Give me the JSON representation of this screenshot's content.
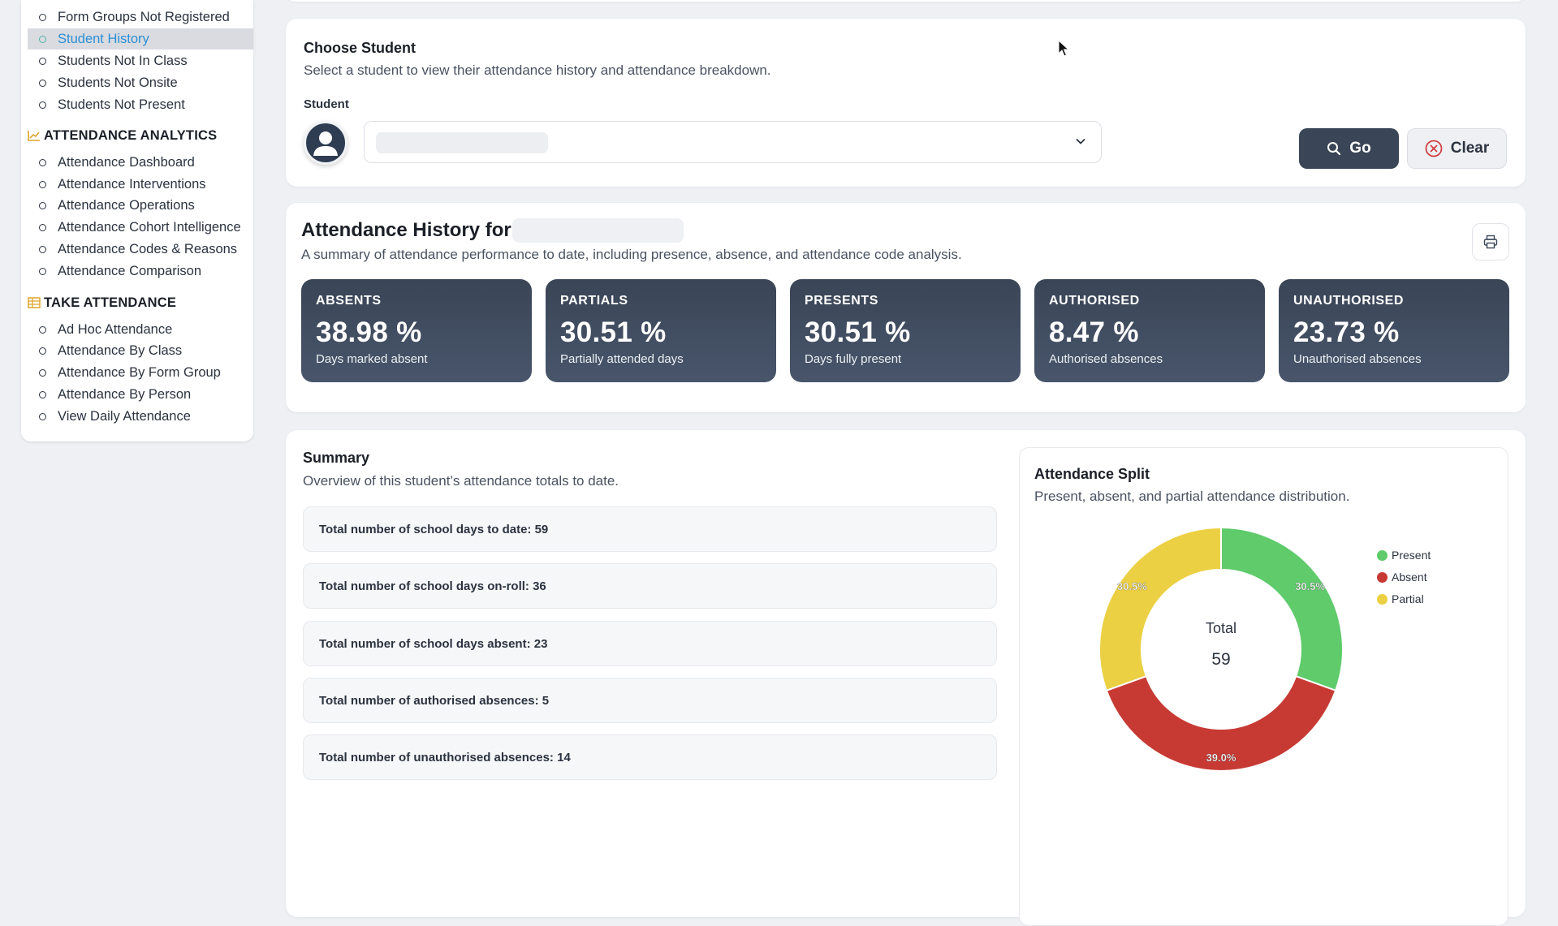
{
  "sidebar": {
    "items_top": [
      {
        "label": "Form Groups Not Registered",
        "active": false
      },
      {
        "label": "Student History",
        "active": true
      },
      {
        "label": "Students Not In Class",
        "active": false
      },
      {
        "label": "Students Not Onsite",
        "active": false
      },
      {
        "label": "Students Not Present",
        "active": false
      }
    ],
    "analytics": {
      "heading": "ATTENDANCE ANALYTICS",
      "icon": "line-chart-icon",
      "items": [
        {
          "label": "Attendance Dashboard"
        },
        {
          "label": "Attendance Interventions"
        },
        {
          "label": "Attendance Operations"
        },
        {
          "label": "Attendance Cohort Intelligence"
        },
        {
          "label": "Attendance Codes & Reasons"
        },
        {
          "label": "Attendance Comparison"
        }
      ]
    },
    "take": {
      "heading": "TAKE ATTENDANCE",
      "icon": "table-icon",
      "items": [
        {
          "label": "Ad Hoc Attendance"
        },
        {
          "label": "Attendance By Class"
        },
        {
          "label": "Attendance By Form Group"
        },
        {
          "label": "Attendance By Person"
        },
        {
          "label": "View Daily Attendance"
        }
      ]
    }
  },
  "choose": {
    "title": "Choose Student",
    "subtitle": "Select a student to view their attendance history and attendance breakdown.",
    "student_label": "Student",
    "go_label": "Go",
    "clear_label": "Clear"
  },
  "history": {
    "title": "Attendance History for",
    "subtitle": "A summary of attendance performance to date, including presence, absence, and attendance code analysis.",
    "stats": [
      {
        "key": "ABSENTS",
        "value": "38.98 %",
        "desc": "Days marked absent"
      },
      {
        "key": "PARTIALS",
        "value": "30.51 %",
        "desc": "Partially attended days"
      },
      {
        "key": "PRESENTS",
        "value": "30.51 %",
        "desc": "Days fully present"
      },
      {
        "key": "AUTHORISED",
        "value": "8.47 %",
        "desc": "Authorised absences"
      },
      {
        "key": "UNAUTHORISED",
        "value": "23.73 %",
        "desc": "Unauthorised absences"
      }
    ]
  },
  "summary": {
    "title": "Summary",
    "subtitle": "Overview of this student’s attendance totals to date.",
    "rows": [
      {
        "label": "Total number of school days to date:",
        "value": "59"
      },
      {
        "label": "Total number of school days on-roll:",
        "value": "36"
      },
      {
        "label": "Total number of school days absent:",
        "value": "23"
      },
      {
        "label": "Total number of authorised absences:",
        "value": "5"
      },
      {
        "label": "Total number of unauthorised absences:",
        "value": "14"
      }
    ]
  },
  "split": {
    "title": "Attendance Split",
    "subtitle": "Present, absent, and partial attendance distribution.",
    "center_label": "Total",
    "center_value": "59"
  },
  "chart_data": {
    "type": "pie",
    "title": "Attendance Split",
    "categories": [
      "Present",
      "Absent",
      "Partial"
    ],
    "values": [
      30.5,
      39.0,
      30.5
    ],
    "data_labels": [
      "30.5%",
      "39.0%",
      "30.5%"
    ],
    "colors": [
      "#5fcb6b",
      "#c73a34",
      "#ecd043"
    ],
    "legend": "right",
    "donut": true
  }
}
